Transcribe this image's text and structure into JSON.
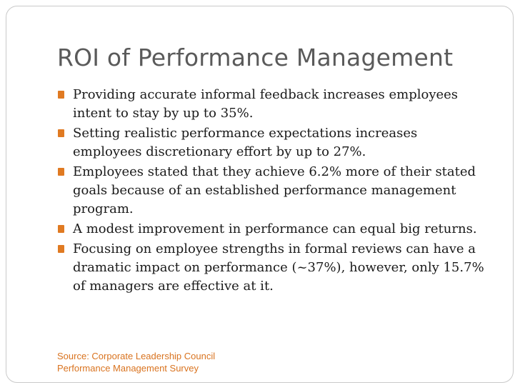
{
  "slide": {
    "title": "ROI of Performance Management",
    "bullets": [
      "Providing accurate informal feedback increases employees intent to stay by up to 35%.",
      "Setting realistic performance expectations increases employees discretionary effort by up to 27%.",
      "Employees stated that they achieve 6.2% more of their stated goals because of an established performance management program.",
      "A modest improvement in performance can equal big returns.",
      "Focusing on employee strengths in formal reviews can have a dramatic impact on performance (~37%), however, only 15.7% of managers are effective at it."
    ],
    "source_lines": [
      "Source: Corporate Leadership Council",
      "Performance Management Survey"
    ],
    "colors": {
      "accent": "#e07a22",
      "title": "#5a5a5a",
      "body": "#1a1a1a",
      "source": "#d9731f",
      "frame": "#c9c9c9"
    }
  }
}
